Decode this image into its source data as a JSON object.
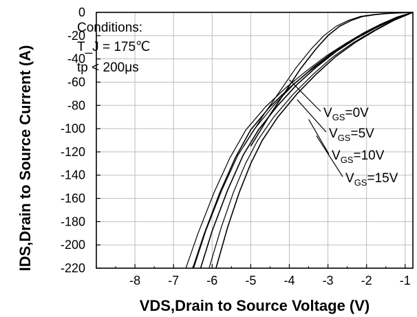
{
  "chart_data": {
    "type": "line",
    "xlabel": "VDS,Drain to Source Voltage (V)",
    "ylabel": "IDS,Drain to Source Current (A)",
    "xlim": [
      -9,
      -0.8
    ],
    "ylim": [
      -220,
      0
    ],
    "xticks": [
      -8,
      -7,
      -6,
      -5,
      -4,
      -3,
      -2,
      -1
    ],
    "yticks": [
      0,
      -20,
      -40,
      -60,
      -80,
      -100,
      -120,
      -140,
      -160,
      -180,
      -200,
      -220
    ],
    "grid": true,
    "conditions": {
      "title": "Conditions:",
      "tj": "T_J = 175℃",
      "tp": "tp < 200μs"
    },
    "series": [
      {
        "name": "VGS=0V",
        "label_main": "V",
        "label_sub": "GS",
        "label_tail": "=0V",
        "x": [
          -0.8,
          -1.2,
          -1.5,
          -1.8,
          -2.1,
          -2.4,
          -2.7,
          -3.0,
          -3.3,
          -3.7,
          -4.1,
          -4.5,
          -5.0
        ],
        "y": [
          0,
          -0.5,
          -1,
          -2,
          -3.5,
          -7,
          -12,
          -20,
          -31,
          -48,
          -68,
          -88,
          -115
        ]
      },
      {
        "name": "VGS=5V",
        "label_main": "V",
        "label_sub": "GS",
        "label_tail": "=5V",
        "x": [
          -0.8,
          -1.2,
          -1.6,
          -2.0,
          -2.5,
          -3.0,
          -3.5,
          -4.0,
          -4.5,
          -5.0,
          -5.4,
          -5.8,
          -6.2,
          -6.5
        ],
        "y": [
          0,
          -4,
          -10,
          -17,
          -27,
          -38,
          -51,
          -65,
          -81,
          -101,
          -125,
          -155,
          -190,
          -220
        ]
      },
      {
        "name": "VGS=10V",
        "label_main": "V",
        "label_sub": "GS",
        "label_tail": "=10V",
        "x": [
          -0.8,
          -1.3,
          -1.8,
          -2.3,
          -2.8,
          -3.3,
          -3.8,
          -4.3,
          -4.8,
          -5.2,
          -5.6,
          -6.0,
          -6.3
        ],
        "y": [
          0,
          -6,
          -14,
          -23,
          -34,
          -47,
          -62,
          -80,
          -101,
          -123,
          -153,
          -188,
          -220
        ]
      },
      {
        "name": "VGS=15V",
        "label_main": "V",
        "label_sub": "GS",
        "label_tail": "=15V",
        "x": [
          -0.8,
          -1.3,
          -1.8,
          -2.3,
          -2.8,
          -3.3,
          -3.8,
          -4.3,
          -4.7,
          -5.0,
          -5.3,
          -5.6,
          -5.9
        ],
        "y": [
          0,
          -7,
          -16,
          -26,
          -38,
          -53,
          -70,
          -90,
          -110,
          -130,
          -155,
          -185,
          -220
        ]
      }
    ]
  }
}
